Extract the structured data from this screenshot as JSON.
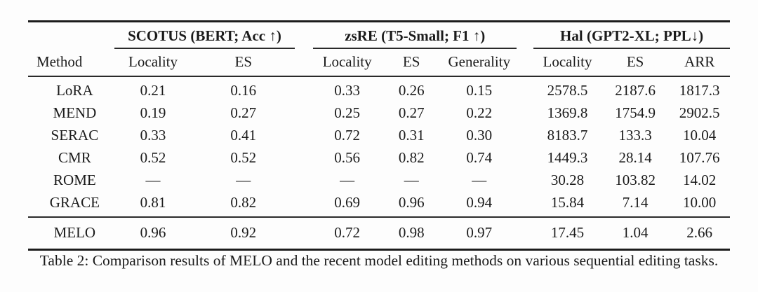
{
  "table": {
    "method_header": "Method",
    "groups": [
      {
        "label": "SCOTUS (BERT; Acc ↑)",
        "columns": [
          "Locality",
          "ES"
        ]
      },
      {
        "label": "zsRE (T5-Small; F1 ↑)",
        "columns": [
          "Locality",
          "ES",
          "Generality"
        ]
      },
      {
        "label": "Hal (GPT2-XL; PPL↓)",
        "columns": [
          "Locality",
          "ES",
          "ARR"
        ]
      }
    ],
    "rows": [
      {
        "method": "LoRA",
        "values": [
          "0.21",
          "0.16",
          "0.33",
          "0.26",
          "0.15",
          "2578.5",
          "2187.6",
          "1817.3"
        ],
        "bold": []
      },
      {
        "method": "MEND",
        "values": [
          "0.19",
          "0.27",
          "0.25",
          "0.27",
          "0.22",
          "1369.8",
          "1754.9",
          "2902.5"
        ],
        "bold": []
      },
      {
        "method": "SERAC",
        "values": [
          "0.33",
          "0.41",
          "0.72",
          "0.31",
          "0.30",
          "8183.7",
          "133.3",
          "10.04"
        ],
        "bold": []
      },
      {
        "method": "CMR",
        "values": [
          "0.52",
          "0.52",
          "0.56",
          "0.82",
          "0.74",
          "1449.3",
          "28.14",
          "107.76"
        ],
        "bold": []
      },
      {
        "method": "ROME",
        "values": [
          "—",
          "—",
          "—",
          "—",
          "—",
          "30.28",
          "103.82",
          "14.02"
        ],
        "bold": []
      },
      {
        "method": "GRACE",
        "values": [
          "0.81",
          "0.82",
          "0.69",
          "0.96",
          "0.94",
          "15.84",
          "7.14",
          "10.00"
        ],
        "bold": [
          5
        ]
      }
    ],
    "highlight_row": {
      "method": "MELO",
      "values": [
        "0.96",
        "0.92",
        "0.72",
        "0.98",
        "0.97",
        "17.45",
        "1.04",
        "2.66"
      ],
      "bold": [
        0,
        1,
        2,
        3,
        4,
        6,
        7
      ]
    }
  },
  "caption": "Table 2: Comparison results of MELO and the recent model editing methods on various sequential editing tasks."
}
